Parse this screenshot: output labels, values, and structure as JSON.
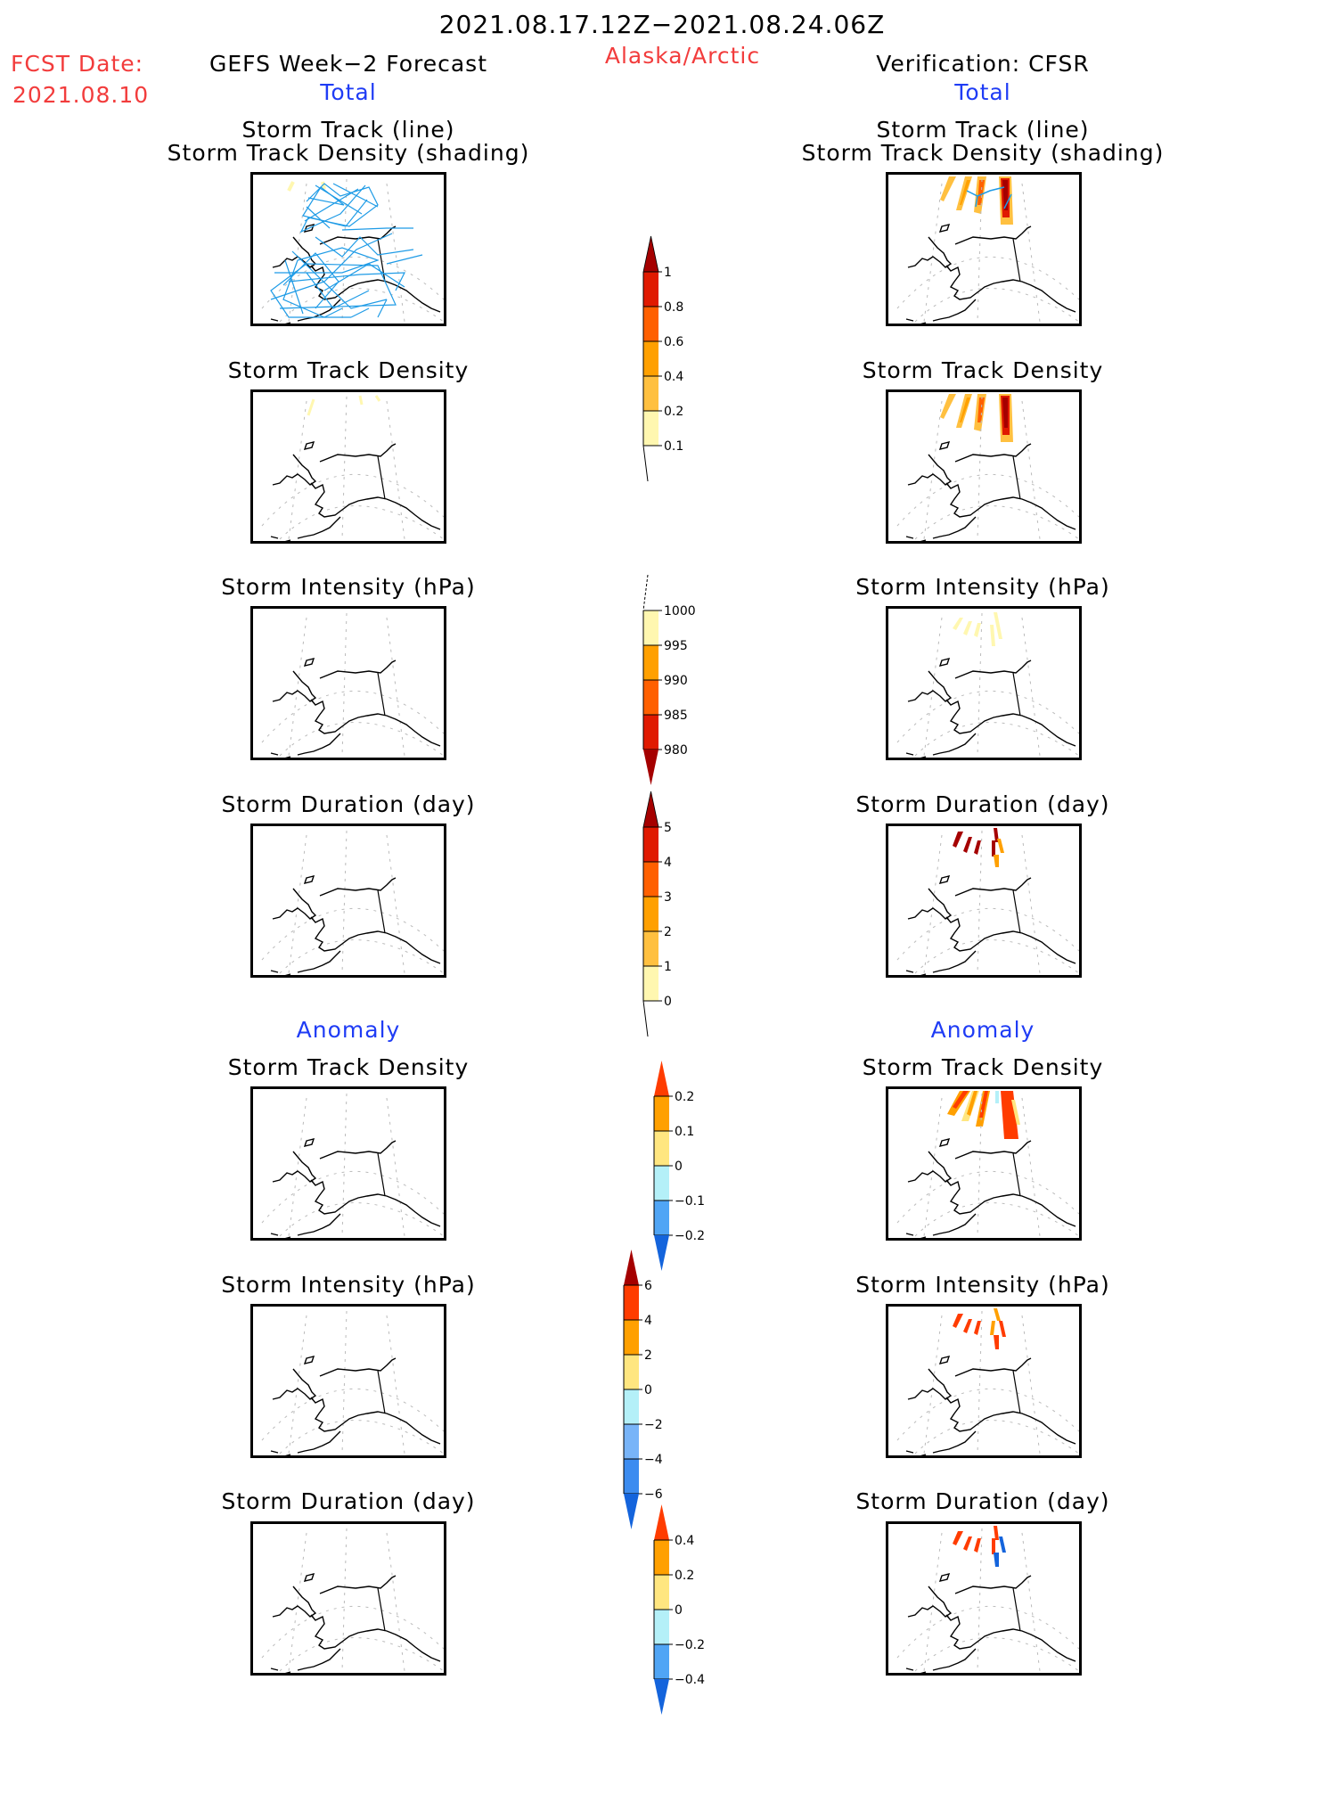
{
  "header": {
    "period": "2021.08.17.12Z−2021.08.24.06Z",
    "region": "Alaska/Arctic",
    "fcst_label": "FCST Date:",
    "fcst_date": "2021.08.10",
    "left_title": "GEFS Week−2 Forecast",
    "right_title": "Verification: CFSR",
    "total_label": "Total",
    "anomaly_label": "Anomaly"
  },
  "panel_titles": {
    "track_line": "Storm Track (line)",
    "track_shading": "Storm Track Density (shading)",
    "density": "Storm Track Density",
    "intensity": "Storm Intensity (hPa)",
    "duration": "Storm Duration (day)"
  },
  "colors": {
    "track_line": "#1e9be6",
    "coast": "#000000",
    "title_red": "#f23c3c",
    "section_blue": "#1f3cf5"
  },
  "colorbars": {
    "density_total": {
      "labels": [
        "1",
        "0.8",
        "0.6",
        "0.4",
        "0.2",
        "0.1"
      ],
      "colors": [
        "#a50000",
        "#e01a00",
        "#ff6000",
        "#ffa000",
        "#ffc040",
        "#fff7b0"
      ],
      "extend": "max"
    },
    "intensity_total": {
      "labels": [
        "1000",
        "995",
        "990",
        "985",
        "980"
      ],
      "colors": [
        "#fff7b0",
        "#ffa000",
        "#ff6000",
        "#e01a00",
        "#a50000"
      ],
      "extend": "min"
    },
    "duration_total": {
      "labels": [
        "5",
        "4",
        "3",
        "2",
        "1",
        "0"
      ],
      "colors": [
        "#a50000",
        "#e01a00",
        "#ff6000",
        "#ffa000",
        "#ffc040",
        "#fff7b0"
      ],
      "extend": "max"
    },
    "density_anom": {
      "labels": [
        "0.2",
        "0.1",
        "0",
        "−0.1",
        "−0.2"
      ],
      "colors": [
        "#ff3c00",
        "#ffa000",
        "#ffe680",
        "#b4f0f8",
        "#50a5f5",
        "#1464dc"
      ],
      "extend": "both"
    },
    "intensity_anom": {
      "labels": [
        "6",
        "4",
        "2",
        "0",
        "−2",
        "−4",
        "−6"
      ],
      "colors": [
        "#a50000",
        "#ff3c00",
        "#ffa000",
        "#ffe680",
        "#b4f0f8",
        "#78b4f8",
        "#3c8cf0",
        "#1464dc"
      ],
      "extend": "both"
    },
    "duration_anom": {
      "labels": [
        "0.4",
        "0.2",
        "0",
        "−0.2",
        "−0.4"
      ],
      "colors": [
        "#ff3c00",
        "#ffa000",
        "#ffe680",
        "#b4f0f8",
        "#50a5f5",
        "#1464dc"
      ],
      "extend": "both"
    }
  }
}
